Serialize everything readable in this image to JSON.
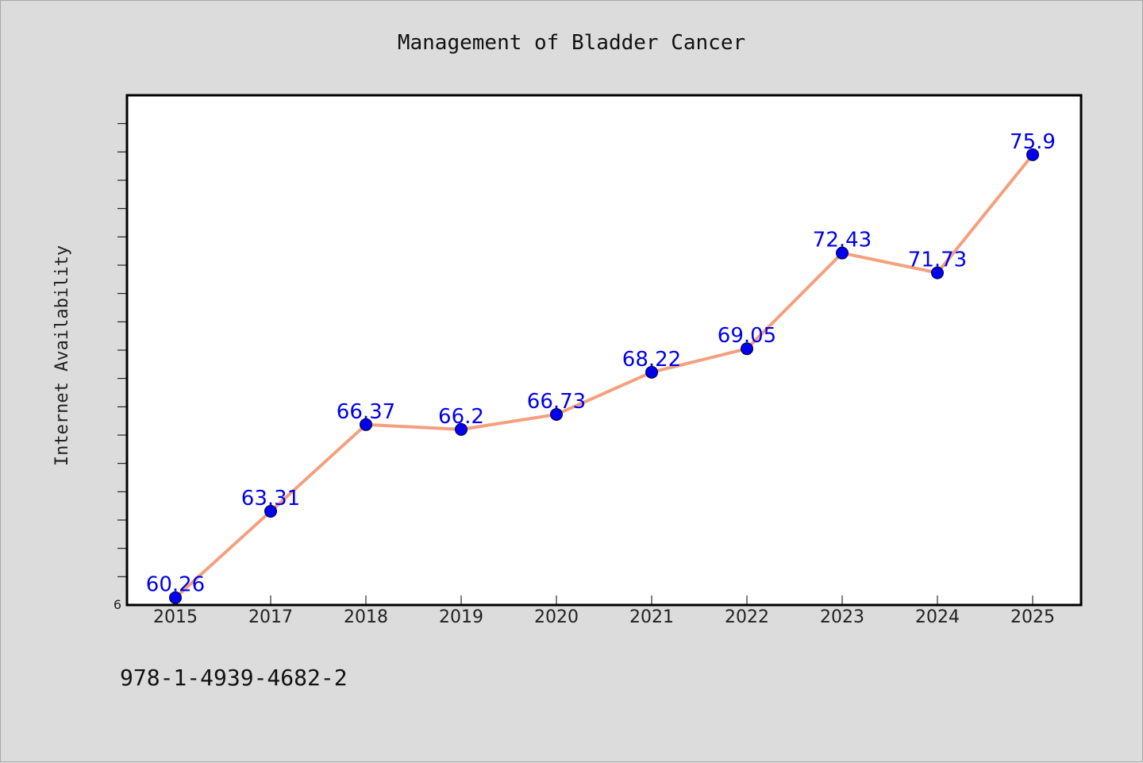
{
  "chart_data": {
    "type": "line",
    "title": "Management of Bladder Cancer",
    "xlabel": "",
    "ylabel": "Internet Availability",
    "categories": [
      "2015",
      "2017",
      "2018",
      "2019",
      "2020",
      "2021",
      "2022",
      "2023",
      "2024",
      "2025"
    ],
    "series": [
      {
        "values": [
          60.26,
          63.31,
          66.37,
          66.2,
          66.73,
          68.22,
          69.05,
          72.43,
          71.73,
          75.9
        ],
        "labels": [
          "60.26",
          "63.31",
          "66.37",
          "66.2",
          "66.73",
          "68.22",
          "69.05",
          "72.43",
          "71.73",
          "75.9"
        ],
        "line_color": "#f4a07e",
        "marker_color": "#0000ee",
        "label_color": "#0000ee"
      }
    ],
    "ylim": [
      60,
      78
    ],
    "y_visible_tick_label": "6",
    "grid": false,
    "legend": "none"
  },
  "footer_text": "978-1-4939-4682-2"
}
